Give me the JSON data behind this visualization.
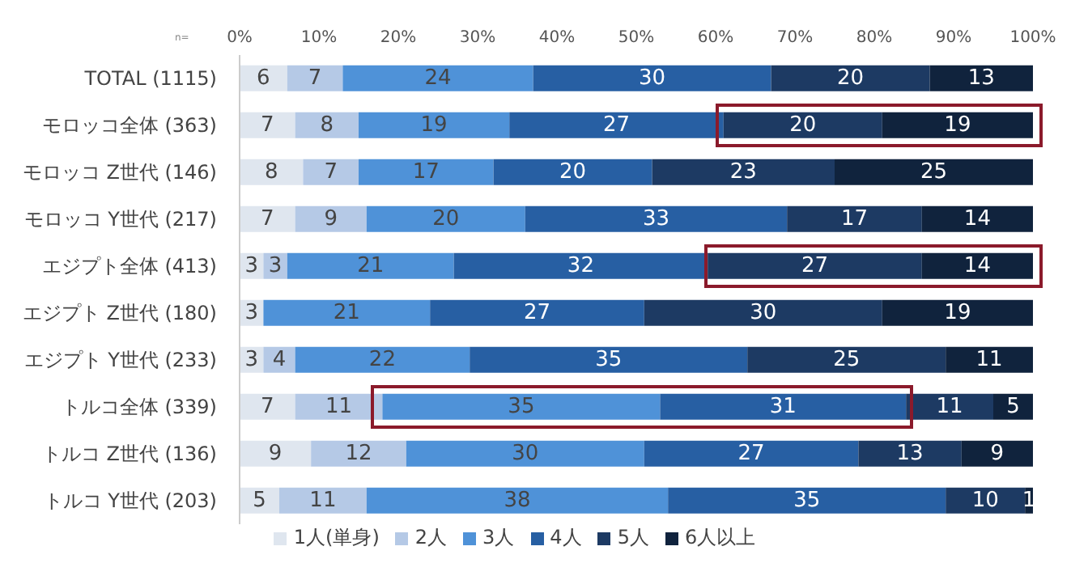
{
  "chart_data": {
    "type": "bar",
    "orientation": "horizontal",
    "stacked": true,
    "categories": [
      "TOTAL (1115)",
      "モロッコ全体 (363)",
      "モロッコ Z世代 (146)",
      "モロッコ Y世代 (217)",
      "エジプト全体 (413)",
      "エジプト Z世代 (180)",
      "エジプト Y世代 (233)",
      "トルコ全体 (339)",
      "トルコ Z世代 (136)",
      "トルコ Y世代 (203)"
    ],
    "series": [
      {
        "name": "1人(単身)",
        "color": "#dfe6ef",
        "values": [
          6,
          7,
          8,
          7,
          3,
          3,
          3,
          7,
          9,
          5
        ],
        "value_labels": [
          "6",
          "7",
          "8",
          "7",
          "3",
          "3",
          "3",
          "7",
          "9",
          "5"
        ]
      },
      {
        "name": "2人",
        "color": "#b5c9e6",
        "values": [
          7,
          8,
          7,
          9,
          3,
          0,
          4,
          11,
          12,
          11
        ],
        "value_labels": [
          "7",
          "8",
          "7",
          "9",
          "3",
          null,
          "4",
          "11",
          "12",
          "11"
        ]
      },
      {
        "name": "3人",
        "color": "#4f92d8",
        "values": [
          24,
          19,
          17,
          20,
          21,
          21,
          22,
          35,
          30,
          38
        ],
        "value_labels": [
          "24",
          "19",
          "17",
          "20",
          "21",
          "21",
          "22",
          "35",
          "30",
          "38"
        ]
      },
      {
        "name": "4人",
        "color": "#275fa3",
        "values": [
          30,
          27,
          20,
          33,
          32,
          27,
          35,
          31,
          27,
          35
        ],
        "value_labels": [
          "30",
          "27",
          "20",
          "33",
          "32",
          "27",
          "35",
          "31",
          "27",
          "35"
        ]
      },
      {
        "name": "5人",
        "color": "#1d3a63",
        "values": [
          20,
          20,
          23,
          17,
          27,
          30,
          25,
          11,
          13,
          10
        ],
        "value_labels": [
          "20",
          "20",
          "23",
          "17",
          "27",
          "30",
          "25",
          "11",
          "13",
          "10"
        ]
      },
      {
        "name": "6人以上",
        "color": "#10233d",
        "values": [
          13,
          19,
          25,
          14,
          14,
          19,
          11,
          5,
          9,
          1
        ],
        "value_labels": [
          "13",
          "19",
          "25",
          "14",
          "14",
          "19",
          "11",
          "5",
          "9",
          "1"
        ]
      }
    ],
    "xlim": [
      0,
      100
    ],
    "xticks": [
      {
        "value": 0,
        "label": "0%"
      },
      {
        "value": 10,
        "label": "10%"
      },
      {
        "value": 20,
        "label": "20%"
      },
      {
        "value": 30,
        "label": "30%"
      },
      {
        "value": 40,
        "label": "40%"
      },
      {
        "value": 50,
        "label": "50%"
      },
      {
        "value": 60,
        "label": "60%"
      },
      {
        "value": 70,
        "label": "70%"
      },
      {
        "value": 80,
        "label": "80%"
      },
      {
        "value": 90,
        "label": "90%"
      },
      {
        "value": 100,
        "label": "100%"
      }
    ],
    "annotations": [
      "n="
    ],
    "legend": "bottom",
    "grid": false
  }
}
